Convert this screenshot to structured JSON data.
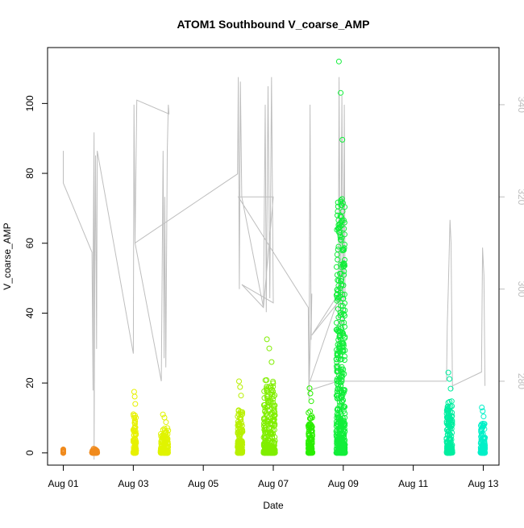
{
  "chart_data": {
    "type": "scatter",
    "title": "ATOM1 Southbound V_coarse_AMP",
    "xlabel": "Date",
    "ylabel": "V_coarse_AMP",
    "x_ticks": [
      "Aug 01",
      "Aug 03",
      "Aug 05",
      "Aug 07",
      "Aug 09",
      "Aug 11",
      "Aug 13"
    ],
    "x_tick_days": [
      1,
      3,
      5,
      7,
      9,
      11,
      13
    ],
    "xlim": [
      0.55,
      13.45
    ],
    "ylim": [
      -3.5,
      116
    ],
    "y_ticks": [
      0,
      20,
      40,
      60,
      80,
      100
    ],
    "y2_ticks": [
      280,
      300,
      320,
      340
    ],
    "y2_lim": [
      261.8,
      352.4
    ],
    "grid": false,
    "point_series": {
      "name": "",
      "style": "open-circle",
      "clusters": [
        {
          "day_start": 1.0,
          "day_end": 1.0,
          "max": 1.0,
          "color": "#f08b1e"
        },
        {
          "day_start": 1.82,
          "day_end": 1.97,
          "max": 1.2,
          "color": "#f08b1e"
        },
        {
          "day_start": 3.0,
          "day_end": 3.08,
          "max": 17.5,
          "color": "#e7f100"
        },
        {
          "day_start": 3.78,
          "day_end": 4.0,
          "max": 11.0,
          "color": "#e0f400"
        },
        {
          "day_start": 5.98,
          "day_end": 6.12,
          "max": 20.5,
          "color": "#b8f000"
        },
        {
          "day_start": 6.72,
          "day_end": 7.05,
          "max": 32.5,
          "color": "#80ee00"
        },
        {
          "day_start": 8.0,
          "day_end": 8.12,
          "max": 18.5,
          "color": "#2aee00"
        },
        {
          "day_start": 8.8,
          "day_end": 9.05,
          "max": 112.0,
          "color": "#12ee3a"
        },
        {
          "day_start": 11.95,
          "day_end": 12.12,
          "max": 23.0,
          "color": "#00eea0"
        },
        {
          "day_start": 12.92,
          "day_end": 13.05,
          "max": 13.0,
          "color": "#00f0c8"
        }
      ]
    },
    "line_series": {
      "name": "",
      "color": "#bebebe",
      "axis": "right",
      "points": [
        [
          1.0,
          328
        ],
        [
          1.0,
          330
        ],
        [
          1.0,
          323
        ],
        [
          1.82,
          308
        ],
        [
          1.85,
          278
        ],
        [
          1.85,
          303
        ],
        [
          1.88,
          334
        ],
        [
          1.88,
          263
        ],
        [
          1.9,
          305
        ],
        [
          1.92,
          329
        ],
        [
          1.95,
          287
        ],
        [
          1.97,
          330
        ],
        [
          3.0,
          286
        ],
        [
          3.02,
          340
        ],
        [
          3.05,
          310
        ],
        [
          3.8,
          280
        ],
        [
          3.85,
          330
        ],
        [
          3.88,
          285
        ],
        [
          3.9,
          320
        ],
        [
          3.93,
          283
        ],
        [
          3.97,
          330
        ],
        [
          4.0,
          340
        ],
        [
          4.02,
          338
        ],
        [
          3.1,
          341
        ],
        [
          3.05,
          310
        ],
        [
          5.98,
          325
        ],
        [
          6.0,
          346
        ],
        [
          6.03,
          300
        ],
        [
          6.06,
          345
        ],
        [
          6.1,
          320
        ],
        [
          6.72,
          296
        ],
        [
          6.77,
          340
        ],
        [
          6.8,
          295
        ],
        [
          6.85,
          344
        ],
        [
          6.9,
          298
        ],
        [
          6.95,
          346
        ],
        [
          7.0,
          297
        ],
        [
          6.1,
          301
        ],
        [
          6.72,
          296
        ],
        [
          7.0,
          320
        ],
        [
          6.0,
          320
        ],
        [
          8.0,
          296
        ],
        [
          8.02,
          276
        ],
        [
          8.05,
          340
        ],
        [
          8.08,
          289
        ],
        [
          8.1,
          299
        ],
        [
          8.02,
          278
        ],
        [
          8.85,
          280
        ],
        [
          8.88,
          346
        ],
        [
          8.92,
          285
        ],
        [
          8.96,
          342
        ],
        [
          9.0,
          290
        ],
        [
          9.03,
          340
        ],
        [
          9.05,
          299
        ],
        [
          8.1,
          290
        ],
        [
          8.95,
          300
        ],
        [
          8.05,
          280
        ],
        [
          11.95,
          280
        ],
        [
          11.97,
          292
        ],
        [
          12.0,
          300
        ],
        [
          12.05,
          315
        ],
        [
          12.08,
          310
        ],
        [
          12.12,
          278
        ],
        [
          12.12,
          279
        ],
        [
          12.95,
          282
        ],
        [
          12.98,
          309
        ],
        [
          13.02,
          303
        ],
        [
          13.05,
          279
        ]
      ]
    }
  }
}
